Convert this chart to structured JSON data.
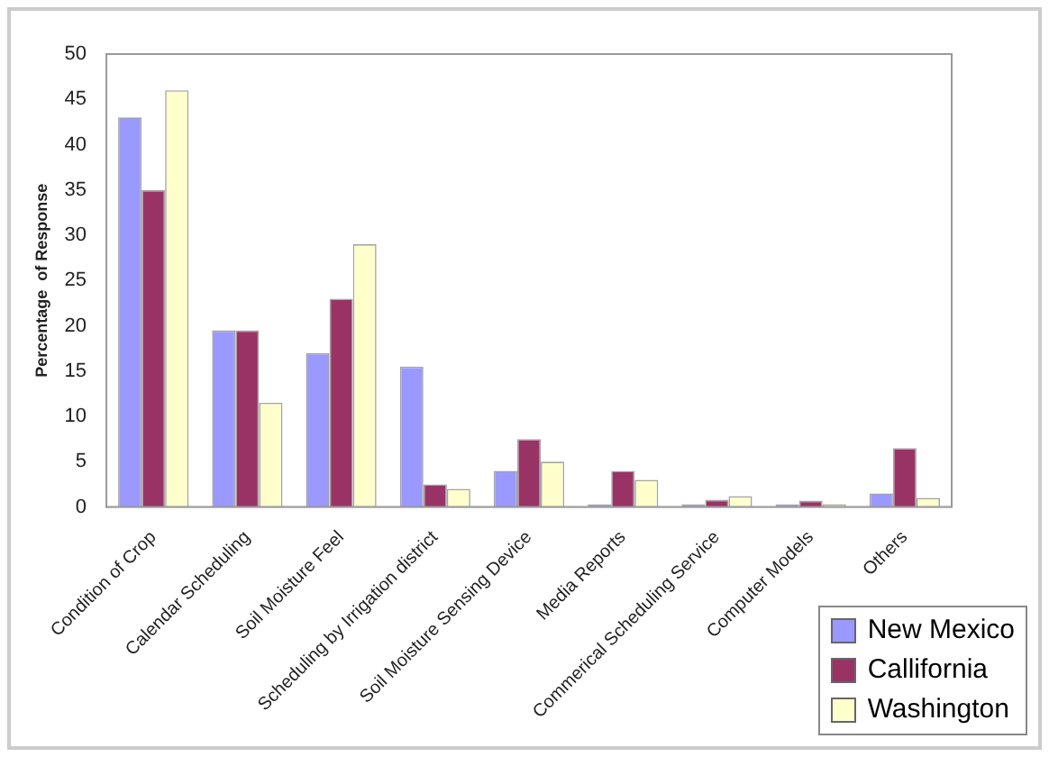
{
  "chart_data": {
    "type": "bar",
    "ylabel": "Percentage  of Response",
    "categories": [
      "Condition of Crop",
      "Calendar Scheduling",
      "Soil Moisture Feel",
      "Scheduling by Irrigation district",
      "Soil Moisture Sensing Device",
      "Media Reports",
      "Commerical Scheduling Service",
      "Computer Models",
      "Others"
    ],
    "series": [
      {
        "name": "New Mexico",
        "color": "#9999ff",
        "values": [
          43,
          19.5,
          17,
          15.5,
          4,
          0.3,
          0.3,
          0.3,
          1.5
        ]
      },
      {
        "name": "Callifornia",
        "color": "#993366",
        "values": [
          35,
          19.5,
          23,
          2.5,
          7.5,
          4,
          0.8,
          0.7,
          6.5
        ]
      },
      {
        "name": "Washington",
        "color": "#ffffcc",
        "values": [
          46,
          11.5,
          29,
          2,
          5,
          3,
          1.2,
          0.3,
          1
        ]
      }
    ],
    "ylim": [
      0,
      50
    ],
    "yticks": [
      0,
      5,
      10,
      15,
      20,
      25,
      30,
      35,
      40,
      45,
      50
    ],
    "grid": false,
    "legend": "bottom right"
  }
}
